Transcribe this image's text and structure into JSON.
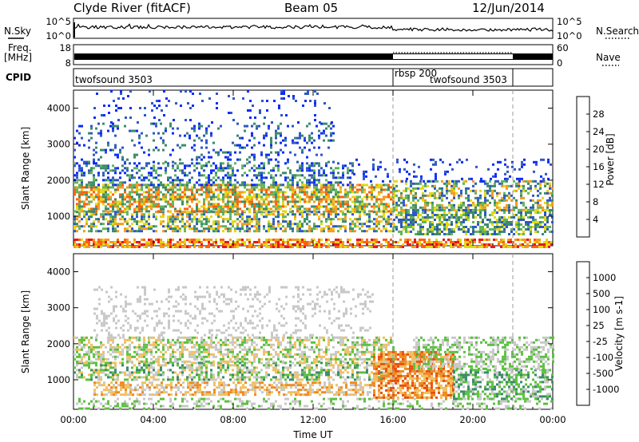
{
  "header": {
    "station": "Clyde River (fitACF)",
    "beam": "Beam 05",
    "date": "12/Jun/2014"
  },
  "strips": {
    "nsky_label": "N.Sky",
    "nsearch_label": "N.Search",
    "nsky_ticks": [
      "10^5",
      "10^0"
    ],
    "nsearch_ticks": [
      "10^5",
      "10^0"
    ],
    "freq_label_1": "Freq.",
    "freq_label_2": "[MHz]",
    "freq_ticks": [
      "18",
      "8"
    ],
    "nave_label": "Nave",
    "nave_ticks": [
      "60",
      "0"
    ],
    "cpid_label": "CPID",
    "cpid_segments": [
      {
        "start_h": 0,
        "end_h": 16,
        "text": "twofsound 3503"
      },
      {
        "start_h": 16,
        "end_h": 22,
        "text": "rbsp 200"
      },
      {
        "start_h": 22,
        "end_h": 24,
        "text": ""
      }
    ],
    "cpid_extra": "twofsound 3503"
  },
  "chart_data": [
    {
      "type": "heatmap",
      "name": "power",
      "xlabel": "Time UT",
      "ylabel": "Slant Range [km]",
      "xlim": [
        0,
        24
      ],
      "ylim": [
        180,
        4500
      ],
      "x_ticks": [
        "00:00",
        "04:00",
        "08:00",
        "12:00",
        "16:00",
        "20:00",
        "00:00"
      ],
      "y_ticks": [
        1000,
        2000,
        3000,
        4000
      ],
      "colorbar_label": "Power [dB]",
      "colorbar_ticks": [
        "4",
        "8",
        "12",
        "16",
        "20",
        "24",
        "28"
      ],
      "colorbar_colors": [
        "#0a2aff",
        "#2f56c8",
        "#3c8a6c",
        "#63b45a",
        "#e2d814",
        "#f59a1c",
        "#ff6010",
        "#e81818"
      ],
      "scatter_bands": [
        {
          "t0": 0,
          "t1": 24,
          "r0": 180,
          "r1": 380,
          "density": 0.7,
          "levels": [
            5,
            6,
            7,
            4
          ]
        },
        {
          "t0": 0,
          "t1": 16,
          "r0": 600,
          "r1": 1150,
          "density": 0.55,
          "levels": [
            1,
            2,
            3,
            4,
            5
          ]
        },
        {
          "t0": 0,
          "t1": 16,
          "r0": 1150,
          "r1": 1900,
          "density": 0.65,
          "levels": [
            2,
            3,
            4,
            5,
            6
          ]
        },
        {
          "t0": 0,
          "t1": 14,
          "r0": 1900,
          "r1": 2500,
          "density": 0.35,
          "levels": [
            0,
            1,
            2,
            3
          ]
        },
        {
          "t0": 0,
          "t1": 13,
          "r0": 2500,
          "r1": 3600,
          "density": 0.18,
          "levels": [
            0,
            1,
            2
          ]
        },
        {
          "t0": 1,
          "t1": 13,
          "r0": 3600,
          "r1": 4500,
          "density": 0.08,
          "levels": [
            0,
            1
          ]
        },
        {
          "t0": 16,
          "t1": 24,
          "r0": 500,
          "r1": 1200,
          "density": 0.6,
          "levels": [
            1,
            2,
            3,
            4
          ]
        },
        {
          "t0": 16,
          "t1": 24,
          "r0": 1200,
          "r1": 2000,
          "density": 0.5,
          "levels": [
            1,
            2,
            3,
            4,
            5
          ]
        },
        {
          "t0": 14,
          "t1": 24,
          "r0": 2000,
          "r1": 2600,
          "density": 0.12,
          "levels": [
            0,
            1
          ]
        }
      ],
      "vertical_markers_h": [
        16,
        22
      ]
    },
    {
      "type": "heatmap",
      "name": "velocity",
      "xlabel": "Time UT",
      "ylabel": "Slant Range [km]",
      "xlim": [
        0,
        24
      ],
      "ylim": [
        180,
        4500
      ],
      "x_ticks": [
        "00:00",
        "04:00",
        "08:00",
        "12:00",
        "16:00",
        "20:00",
        "00:00"
      ],
      "y_ticks": [
        1000,
        2000,
        3000,
        4000
      ],
      "colorbar_label": "Velocity [m s-1]",
      "colorbar_ticks": [
        "1000",
        "500",
        "100",
        "25",
        "-25",
        "-100",
        "-500",
        "-1000"
      ],
      "colorbar_colors": [
        "#2a3ccc",
        "#2f6db0",
        "#3a8a6a",
        "#5cc040",
        "#c8c8c8",
        "#f0c060",
        "#f08a20",
        "#e85010",
        "#e81818"
      ],
      "scatter_bands": [
        {
          "t0": 0,
          "t1": 24,
          "r0": 180,
          "r1": 500,
          "density": 0.3,
          "levels": [
            4,
            3
          ]
        },
        {
          "t0": 1,
          "t1": 15,
          "r0": 600,
          "r1": 950,
          "density": 0.55,
          "levels": [
            6,
            5,
            4
          ]
        },
        {
          "t0": 0,
          "t1": 16,
          "r0": 1000,
          "r1": 1500,
          "density": 0.55,
          "levels": [
            3,
            4,
            2,
            5
          ]
        },
        {
          "t0": 0,
          "t1": 16,
          "r0": 1500,
          "r1": 2200,
          "density": 0.55,
          "levels": [
            4,
            5,
            3
          ]
        },
        {
          "t0": 1,
          "t1": 15,
          "r0": 2200,
          "r1": 3600,
          "density": 0.2,
          "levels": [
            4
          ]
        },
        {
          "t0": 15,
          "t1": 19,
          "r0": 500,
          "r1": 1800,
          "density": 0.75,
          "levels": [
            6,
            7,
            5
          ]
        },
        {
          "t0": 19,
          "t1": 24,
          "r0": 500,
          "r1": 1300,
          "density": 0.55,
          "levels": [
            2,
            3,
            4
          ]
        },
        {
          "t0": 17,
          "t1": 24,
          "r0": 1300,
          "r1": 2200,
          "density": 0.45,
          "levels": [
            4,
            3
          ]
        }
      ],
      "vertical_markers_h": [
        16,
        22
      ]
    }
  ]
}
